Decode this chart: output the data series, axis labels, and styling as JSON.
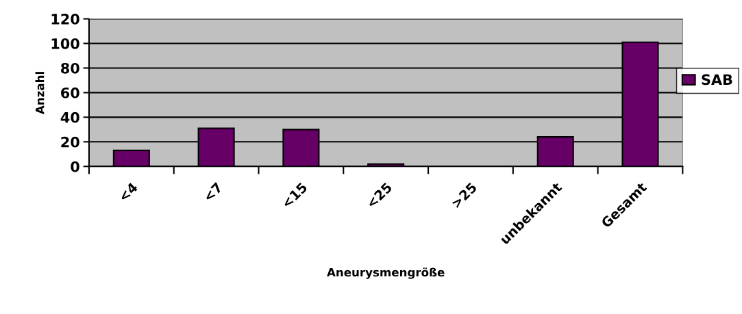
{
  "chart_data": {
    "type": "bar",
    "xlabel": "Aneurysmengröße",
    "ylabel": "Anzahl",
    "categories": [
      "<4",
      "<7",
      "<15",
      "<25",
      ">25",
      "unbekannt",
      "Gesamt"
    ],
    "series": [
      {
        "name": "SAB",
        "color": "#660066",
        "values": [
          13,
          31,
          30,
          2,
          0,
          24,
          101
        ]
      }
    ],
    "ylim": [
      0,
      120
    ],
    "yticks": [
      0,
      20,
      40,
      60,
      80,
      100,
      120
    ],
    "grid": "y",
    "legend": "right"
  }
}
